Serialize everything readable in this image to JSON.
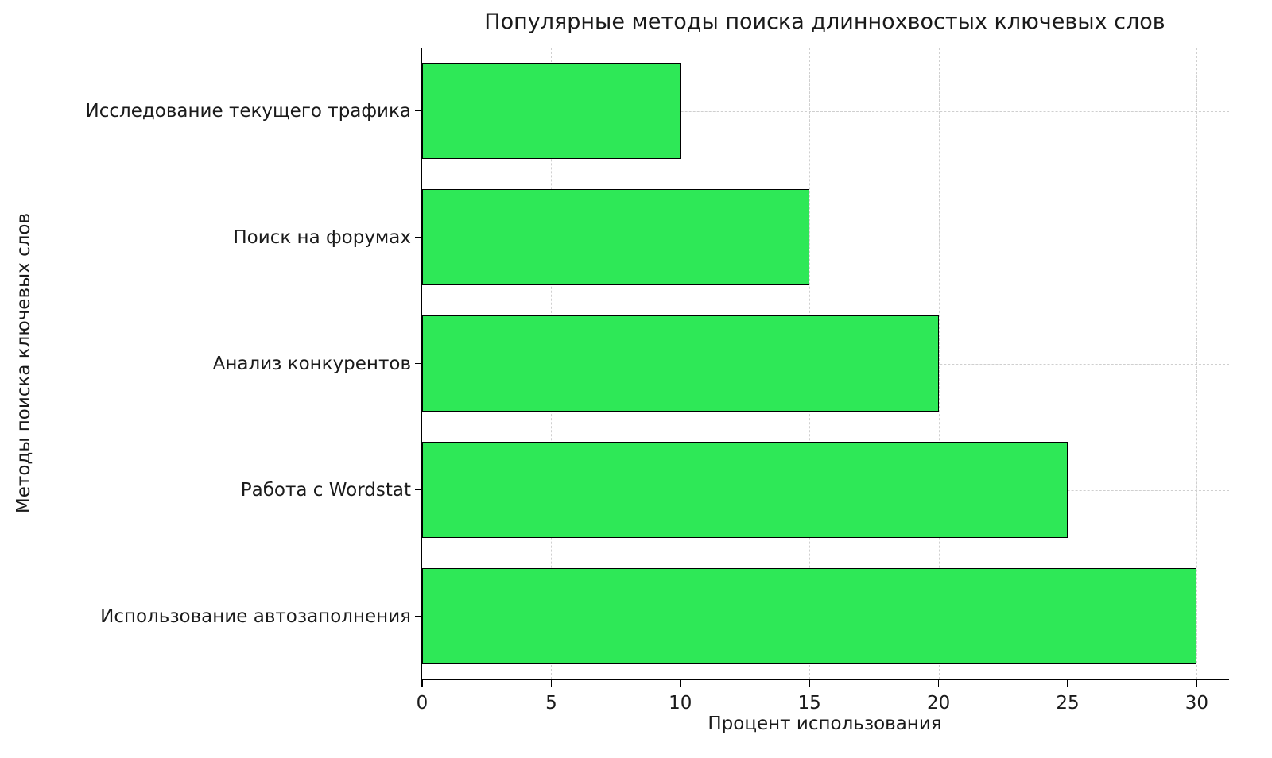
{
  "chart_data": {
    "type": "bar",
    "orientation": "horizontal",
    "title": "Популярные методы поиска длиннохвостых ключевых слов",
    "xlabel": "Процент использования",
    "ylabel": "Методы поиска ключевых слов",
    "categories": [
      "Исследование текущего трафика",
      "Поиск на форумах",
      "Анализ конкурентов",
      "Работа с Wordstat",
      "Использование автозаполнения"
    ],
    "values": [
      10,
      15,
      20,
      25,
      30
    ],
    "xticks": [
      0,
      5,
      10,
      15,
      20,
      25,
      30
    ],
    "xlim": [
      0,
      31.25
    ],
    "grid": true,
    "grid_style": "dashed",
    "bar_color": "#2ee857",
    "bar_edge_color": "#000000",
    "background": "#ffffff",
    "legend": "none"
  }
}
